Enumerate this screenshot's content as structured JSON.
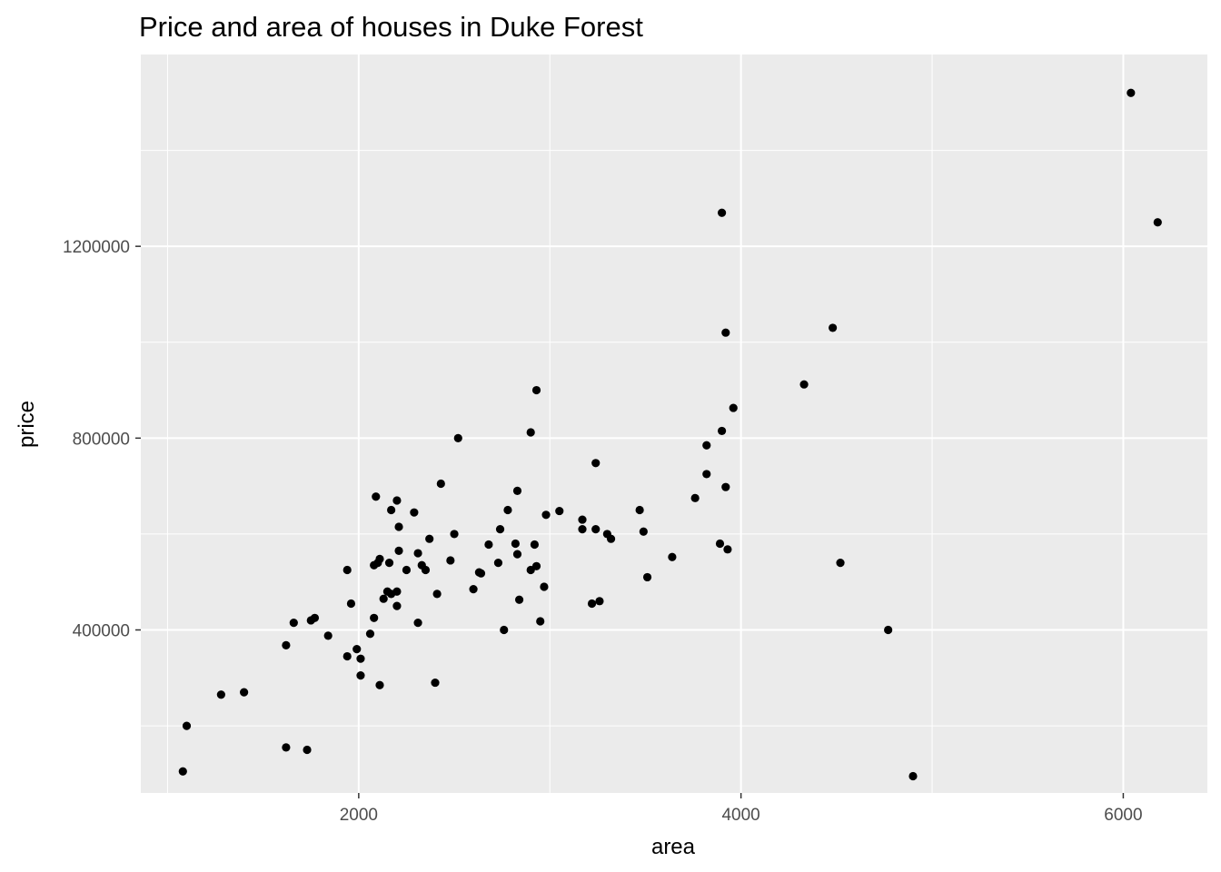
{
  "chart_data": {
    "type": "scatter",
    "title": "Price and area of houses in Duke Forest",
    "xlabel": "area",
    "ylabel": "price",
    "xlim": [
      860,
      6440
    ],
    "ylim": [
      60000,
      1600000
    ],
    "x_ticks": [
      2000,
      4000,
      6000
    ],
    "y_ticks": [
      400000,
      800000,
      1200000
    ],
    "x_tick_labels": [
      "2000",
      "4000",
      "6000"
    ],
    "y_tick_labels": [
      "400000",
      "800000",
      "1200000"
    ],
    "grid": true,
    "legend": "none",
    "colors": {
      "panel": "#ebebeb",
      "grid": "#ffffff",
      "point": "#000000"
    },
    "points": [
      {
        "x": 1100,
        "y": 200000
      },
      {
        "x": 1080,
        "y": 105000
      },
      {
        "x": 1280,
        "y": 265000
      },
      {
        "x": 1400,
        "y": 270000
      },
      {
        "x": 1620,
        "y": 368000
      },
      {
        "x": 1620,
        "y": 155000
      },
      {
        "x": 1660,
        "y": 415000
      },
      {
        "x": 1730,
        "y": 150000
      },
      {
        "x": 1750,
        "y": 420000
      },
      {
        "x": 1770,
        "y": 425000
      },
      {
        "x": 1840,
        "y": 388000
      },
      {
        "x": 1940,
        "y": 525000
      },
      {
        "x": 1940,
        "y": 345000
      },
      {
        "x": 1960,
        "y": 455000
      },
      {
        "x": 1990,
        "y": 360000
      },
      {
        "x": 2010,
        "y": 340000
      },
      {
        "x": 2010,
        "y": 305000
      },
      {
        "x": 2060,
        "y": 392000
      },
      {
        "x": 2080,
        "y": 535000
      },
      {
        "x": 2080,
        "y": 425000
      },
      {
        "x": 2090,
        "y": 678000
      },
      {
        "x": 2100,
        "y": 540000
      },
      {
        "x": 2110,
        "y": 548000
      },
      {
        "x": 2110,
        "y": 285000
      },
      {
        "x": 2130,
        "y": 465000
      },
      {
        "x": 2150,
        "y": 480000
      },
      {
        "x": 2160,
        "y": 540000
      },
      {
        "x": 2170,
        "y": 475000
      },
      {
        "x": 2170,
        "y": 650000
      },
      {
        "x": 2200,
        "y": 670000
      },
      {
        "x": 2200,
        "y": 480000
      },
      {
        "x": 2200,
        "y": 450000
      },
      {
        "x": 2210,
        "y": 615000
      },
      {
        "x": 2210,
        "y": 565000
      },
      {
        "x": 2250,
        "y": 525000
      },
      {
        "x": 2290,
        "y": 645000
      },
      {
        "x": 2310,
        "y": 560000
      },
      {
        "x": 2310,
        "y": 415000
      },
      {
        "x": 2330,
        "y": 535000
      },
      {
        "x": 2350,
        "y": 525000
      },
      {
        "x": 2370,
        "y": 590000
      },
      {
        "x": 2400,
        "y": 290000
      },
      {
        "x": 2410,
        "y": 475000
      },
      {
        "x": 2430,
        "y": 705000
      },
      {
        "x": 2480,
        "y": 545000
      },
      {
        "x": 2500,
        "y": 600000
      },
      {
        "x": 2520,
        "y": 800000
      },
      {
        "x": 2600,
        "y": 485000
      },
      {
        "x": 2630,
        "y": 520000
      },
      {
        "x": 2640,
        "y": 518000
      },
      {
        "x": 2680,
        "y": 578000
      },
      {
        "x": 2730,
        "y": 540000
      },
      {
        "x": 2740,
        "y": 610000
      },
      {
        "x": 2760,
        "y": 400000
      },
      {
        "x": 2780,
        "y": 650000
      },
      {
        "x": 2820,
        "y": 580000
      },
      {
        "x": 2830,
        "y": 690000
      },
      {
        "x": 2830,
        "y": 558000
      },
      {
        "x": 2840,
        "y": 463000
      },
      {
        "x": 2900,
        "y": 812000
      },
      {
        "x": 2900,
        "y": 525000
      },
      {
        "x": 2920,
        "y": 578000
      },
      {
        "x": 2930,
        "y": 900000
      },
      {
        "x": 2930,
        "y": 533000
      },
      {
        "x": 2950,
        "y": 418000
      },
      {
        "x": 2970,
        "y": 490000
      },
      {
        "x": 2980,
        "y": 640000
      },
      {
        "x": 3050,
        "y": 648000
      },
      {
        "x": 3170,
        "y": 630000
      },
      {
        "x": 3170,
        "y": 610000
      },
      {
        "x": 3220,
        "y": 455000
      },
      {
        "x": 3240,
        "y": 610000
      },
      {
        "x": 3240,
        "y": 748000
      },
      {
        "x": 3260,
        "y": 460000
      },
      {
        "x": 3300,
        "y": 600000
      },
      {
        "x": 3320,
        "y": 590000
      },
      {
        "x": 3470,
        "y": 650000
      },
      {
        "x": 3490,
        "y": 605000
      },
      {
        "x": 3510,
        "y": 510000
      },
      {
        "x": 3640,
        "y": 552000
      },
      {
        "x": 3760,
        "y": 675000
      },
      {
        "x": 3820,
        "y": 785000
      },
      {
        "x": 3820,
        "y": 725000
      },
      {
        "x": 3890,
        "y": 580000
      },
      {
        "x": 3900,
        "y": 815000
      },
      {
        "x": 3900,
        "y": 1270000
      },
      {
        "x": 3920,
        "y": 1020000
      },
      {
        "x": 3920,
        "y": 698000
      },
      {
        "x": 3930,
        "y": 568000
      },
      {
        "x": 3960,
        "y": 863000
      },
      {
        "x": 4330,
        "y": 912000
      },
      {
        "x": 4480,
        "y": 1030000
      },
      {
        "x": 4520,
        "y": 540000
      },
      {
        "x": 4770,
        "y": 400000
      },
      {
        "x": 4900,
        "y": 95000
      },
      {
        "x": 6040,
        "y": 1520000
      },
      {
        "x": 6180,
        "y": 1250000
      }
    ]
  }
}
